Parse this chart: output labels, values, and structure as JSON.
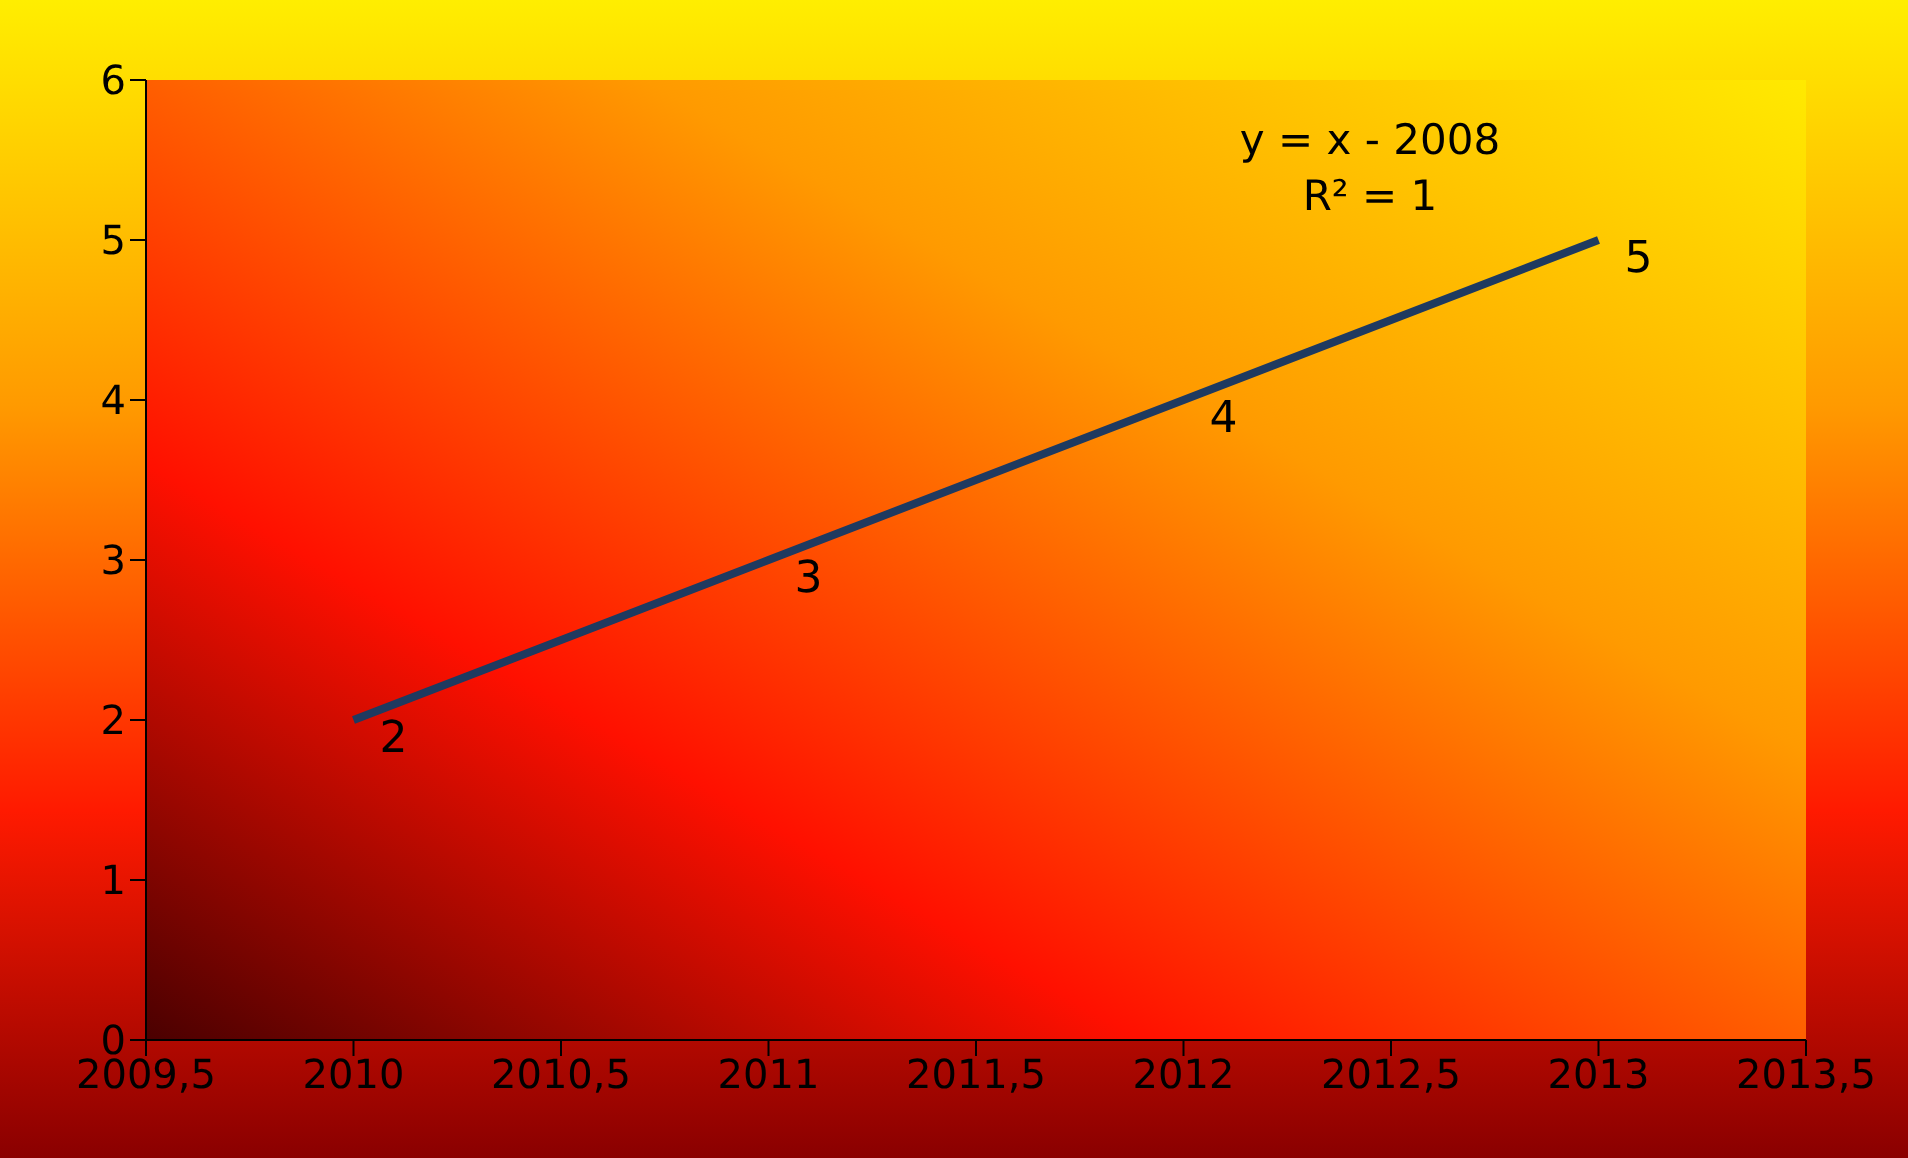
{
  "chart_data": {
    "type": "line",
    "x": [
      2010,
      2011,
      2012,
      2013
    ],
    "series": [
      {
        "color": "#1f3a60",
        "values": [
          2,
          3,
          4,
          5
        ]
      }
    ],
    "xlim": [
      2009.5,
      2013.5
    ],
    "xticks": [
      {
        "value": 2009.5,
        "label": "2009,5"
      },
      2010,
      {
        "value": 2010.5,
        "label": "2010,5"
      },
      2011,
      {
        "value": 2011.5,
        "label": "2011,5"
      },
      2012,
      {
        "value": 2012.5,
        "label": "2012,5"
      },
      2013,
      {
        "value": 2013.5,
        "label": "2013,5"
      }
    ],
    "ylim": [
      0,
      6
    ],
    "yticks": [
      0,
      1,
      2,
      3,
      4,
      5,
      6
    ],
    "legend": false,
    "marker": "none",
    "line_style": "solid",
    "data_labels": true,
    "annotations": [
      "y = x - 2008",
      "R² = 1"
    ]
  }
}
